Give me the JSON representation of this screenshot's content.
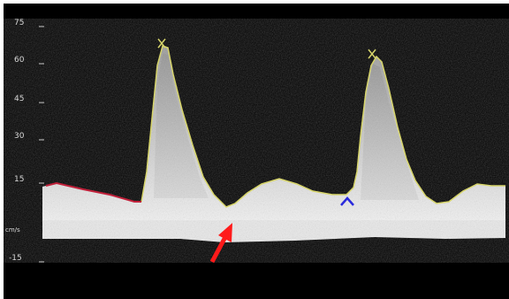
{
  "scale": {
    "ticks": [
      "75",
      "60",
      "45",
      "30",
      "15",
      "-15"
    ],
    "baseline_label": "cm/s"
  },
  "colors": {
    "background": "#000000",
    "envelope": "#d6d46a",
    "trace_start": "#c0203a",
    "arrow": "#ff1a1a",
    "caliper": "#2a2adc"
  }
}
